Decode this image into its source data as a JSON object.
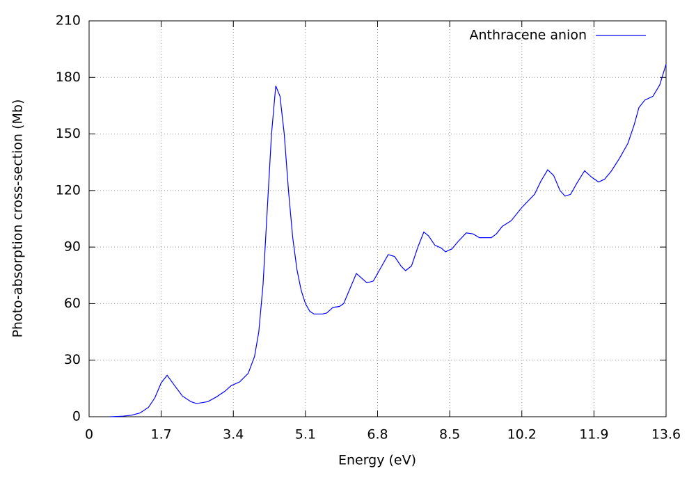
{
  "chart_data": {
    "type": "line",
    "x_label": "Energy (eV)",
    "y_label": "Photo-absorption cross-section (Mb)",
    "xlim": [
      0,
      13.6
    ],
    "xticks": [
      0,
      1.7,
      3.4,
      5.1,
      6.8,
      8.5,
      10.2,
      11.9,
      13.6
    ],
    "ylim": [
      0,
      210
    ],
    "yticks": [
      0,
      30,
      60,
      90,
      120,
      150,
      180,
      210
    ],
    "grid": true,
    "legend_position": "top-right",
    "x": [
      0.5,
      0.8,
      1.0,
      1.2,
      1.4,
      1.55,
      1.7,
      1.84,
      2.0,
      2.2,
      2.4,
      2.53,
      2.8,
      3.0,
      3.2,
      3.35,
      3.55,
      3.75,
      3.9,
      4.0,
      4.1,
      4.2,
      4.3,
      4.4,
      4.5,
      4.6,
      4.7,
      4.8,
      4.9,
      5.0,
      5.1,
      5.2,
      5.3,
      5.5,
      5.6,
      5.75,
      5.9,
      6.0,
      6.15,
      6.3,
      6.45,
      6.55,
      6.7,
      6.9,
      7.05,
      7.2,
      7.35,
      7.46,
      7.6,
      7.75,
      7.89,
      8.0,
      8.15,
      8.3,
      8.4,
      8.55,
      8.7,
      8.89,
      9.05,
      9.2,
      9.48,
      9.6,
      9.74,
      9.95,
      10.2,
      10.5,
      10.65,
      10.81,
      10.95,
      11.1,
      11.22,
      11.35,
      11.5,
      11.68,
      11.85,
      12.01,
      12.15,
      12.3,
      12.5,
      12.7,
      12.85,
      12.96,
      13.1,
      13.29,
      13.45,
      13.6
    ],
    "series": [
      {
        "name": "Anthracene anion",
        "color": "#0000ff",
        "values": [
          0,
          0.3,
          0.8,
          2,
          5,
          10,
          18,
          22,
          17,
          11,
          8,
          7,
          8,
          10.5,
          13.5,
          16.5,
          18.5,
          23,
          32,
          45,
          70,
          110,
          150,
          175.5,
          170,
          150,
          120,
          95,
          78,
          67,
          60,
          56,
          54.5,
          54.5,
          55,
          58,
          58.5,
          60,
          68,
          76,
          73,
          71,
          72,
          80,
          86,
          85,
          80,
          77.5,
          80,
          90,
          98,
          96,
          91,
          89.5,
          87.5,
          89,
          93,
          97.5,
          97,
          95,
          95,
          97,
          101,
          104,
          111,
          118,
          125,
          131,
          128,
          120,
          117,
          118,
          124,
          130.5,
          127,
          124.5,
          126,
          130,
          137,
          145,
          155,
          164,
          168,
          170,
          176,
          187
        ]
      }
    ]
  }
}
